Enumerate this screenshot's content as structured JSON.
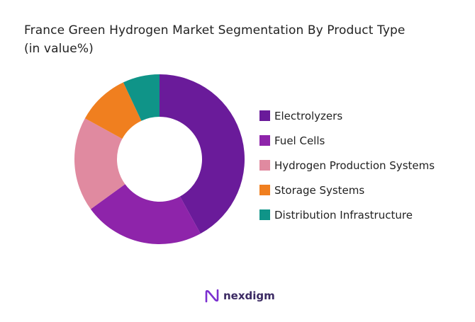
{
  "chart_data": {
    "type": "pie",
    "title_line1": "France Green Hydrogen Market Segmentation By Product Type",
    "title_line2": "(in value%)",
    "categories": [
      "Electrolyzers",
      "Fuel Cells",
      "Hydrogen Production Systems",
      "Storage Systems",
      "Distribution Infrastructure"
    ],
    "values": [
      42,
      23,
      18,
      10,
      7
    ],
    "colors": [
      "#6a1b9a",
      "#8e24aa",
      "#e08aa0",
      "#f07f1f",
      "#0f9488"
    ],
    "donut": true,
    "legend_position": "right"
  },
  "brand": {
    "name": "nexdigm",
    "icon": "nexdigm-logo-icon"
  }
}
